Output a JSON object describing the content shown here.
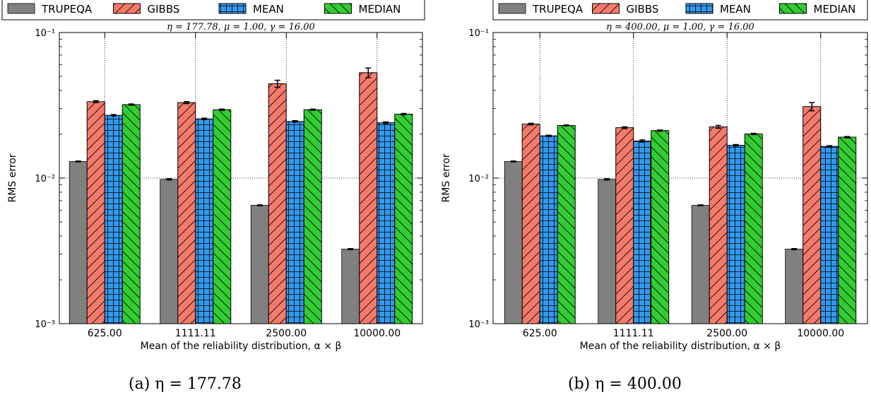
{
  "colors": {
    "TRUPEQA": "#808080",
    "GIBBS": "#f47a6b",
    "MEAN": "#3399ee",
    "MEDIAN": "#33cc33"
  },
  "chart_data": [
    {
      "type": "bar",
      "title": "η = 177.78, μ = 1.00, γ = 16.00",
      "caption": "(a) η = 177.78",
      "xlabel": "Mean of the reliability distribution, α × β",
      "ylabel": "RMS error",
      "yscale": "log",
      "ylim": [
        0.001,
        0.1
      ],
      "yticks": [
        "10⁻³",
        "10⁻²",
        "10⁻¹"
      ],
      "grid": true,
      "legend_position": "top",
      "categories": [
        "625.00",
        "1111.11",
        "2500.00",
        "10000.00"
      ],
      "series": [
        {
          "name": "TRUPEQA",
          "values": [
            0.013,
            0.0098,
            0.0065,
            0.00325
          ],
          "errors": [
            0.0001,
            0.0001,
            5e-05,
            3e-05
          ]
        },
        {
          "name": "GIBBS",
          "values": [
            0.0335,
            0.033,
            0.0445,
            0.053
          ],
          "errors": [
            0.0005,
            0.0005,
            0.0025,
            0.004
          ]
        },
        {
          "name": "MEAN",
          "values": [
            0.027,
            0.0255,
            0.0245,
            0.024
          ],
          "errors": [
            0.0003,
            0.0003,
            0.0003,
            0.0003
          ]
        },
        {
          "name": "MEDIAN",
          "values": [
            0.032,
            0.0295,
            0.0295,
            0.0275
          ],
          "errors": [
            0.0003,
            0.0003,
            0.0003,
            0.0003
          ]
        }
      ]
    },
    {
      "type": "bar",
      "title": "η = 400.00, μ = 1.00, γ = 16.00",
      "caption": "(b) η = 400.00",
      "xlabel": "Mean of the reliability distribution, α × β",
      "ylabel": "RMS error",
      "yscale": "log",
      "ylim": [
        0.001,
        0.1
      ],
      "yticks": [
        "10⁻³",
        "10⁻²",
        "10⁻¹"
      ],
      "grid": true,
      "legend_position": "top",
      "categories": [
        "625.00",
        "1111.11",
        "2500.00",
        "10000.00"
      ],
      "series": [
        {
          "name": "TRUPEQA",
          "values": [
            0.013,
            0.0098,
            0.0065,
            0.00325
          ],
          "errors": [
            0.0001,
            0.0001,
            5e-05,
            3e-05
          ]
        },
        {
          "name": "GIBBS",
          "values": [
            0.0235,
            0.0222,
            0.0225,
            0.031
          ],
          "errors": [
            0.0003,
            0.0003,
            0.0005,
            0.002
          ]
        },
        {
          "name": "MEAN",
          "values": [
            0.0195,
            0.018,
            0.0168,
            0.0165
          ],
          "errors": [
            0.0002,
            0.0003,
            0.0002,
            0.0002
          ]
        },
        {
          "name": "MEDIAN",
          "values": [
            0.023,
            0.0212,
            0.0201,
            0.0191
          ],
          "errors": [
            0.0002,
            0.0002,
            0.0002,
            0.0002
          ]
        }
      ]
    }
  ]
}
